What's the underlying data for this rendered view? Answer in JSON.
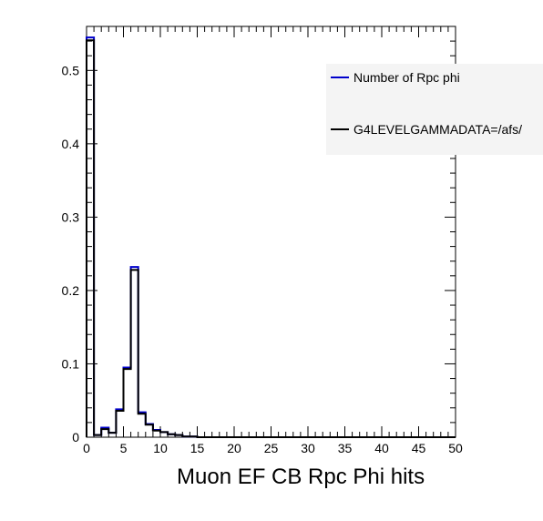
{
  "chart_data": {
    "type": "histogram",
    "xlabel": "Muon EF CB Rpc Phi hits",
    "ylabel": "",
    "xlim": [
      0,
      50
    ],
    "ylim": [
      0,
      0.56
    ],
    "grid": false,
    "legend_position": "top-right",
    "x_ticks": [
      "0",
      "5",
      "10",
      "15",
      "20",
      "25",
      "30",
      "35",
      "40",
      "45",
      "50"
    ],
    "y_ticks": [
      "0",
      "0.1",
      "0.2",
      "0.3",
      "0.4",
      "0.5"
    ],
    "bin_edges": [
      0,
      1,
      2,
      3,
      4,
      5,
      6,
      7,
      8,
      9,
      10,
      11,
      12,
      13,
      14,
      15,
      16,
      17,
      18,
      19,
      20,
      21,
      22,
      23,
      24,
      25,
      26,
      27,
      28,
      29,
      30,
      31,
      32,
      33,
      34,
      35,
      36,
      37,
      38,
      39,
      40,
      41,
      42,
      43,
      44,
      45,
      46,
      47,
      48,
      49,
      50
    ],
    "series": [
      {
        "name": "Number of Rpc phi",
        "color": "#0000cc",
        "values": [
          0.545,
          0.003,
          0.013,
          0.006,
          0.038,
          0.095,
          0.232,
          0.034,
          0.018,
          0.01,
          0.007,
          0.004,
          0.003,
          0.001,
          0.001,
          0,
          0,
          0,
          0,
          0,
          0,
          0,
          0,
          0,
          0,
          0,
          0,
          0,
          0,
          0,
          0,
          0,
          0,
          0,
          0,
          0,
          0,
          0,
          0,
          0,
          0,
          0,
          0,
          0,
          0,
          0,
          0,
          0,
          0,
          0
        ]
      },
      {
        "name": "G4LEVELGAMMADATA=/afs/",
        "color": "#000000",
        "values": [
          0.541,
          0.003,
          0.011,
          0.006,
          0.036,
          0.093,
          0.228,
          0.032,
          0.017,
          0.009,
          0.007,
          0.004,
          0.003,
          0.001,
          0.001,
          0,
          0,
          0,
          0,
          0,
          0,
          0,
          0,
          0,
          0,
          0,
          0,
          0,
          0,
          0,
          0,
          0,
          0,
          0,
          0,
          0,
          0,
          0,
          0,
          0,
          0,
          0,
          0,
          0,
          0,
          0,
          0,
          0,
          0,
          0
        ]
      }
    ]
  }
}
